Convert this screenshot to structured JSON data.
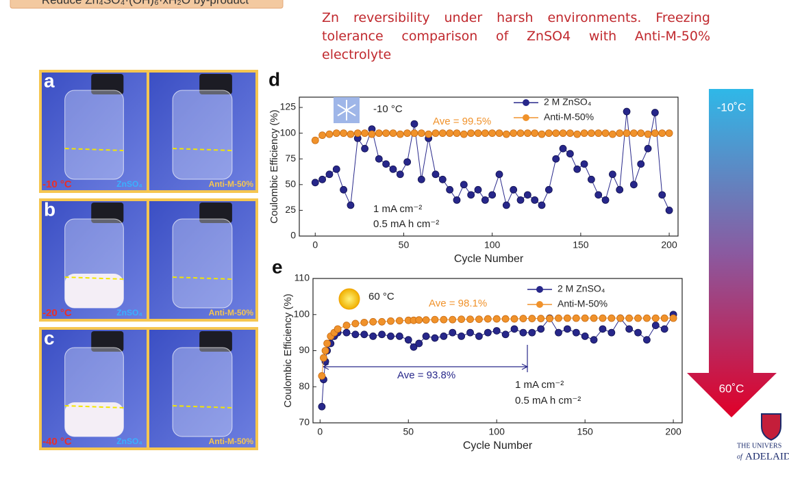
{
  "header": "Reduce Zn₄SO₄·(OH)₆·xH₂O by-product",
  "title": "Zn reversibility under harsh environments. Freezing tolerance comparison of ZnSO4 with Anti-M-50% electrolyte",
  "photos": [
    {
      "letter": "a",
      "temp": "-10 °C",
      "left": "ZnSO₄",
      "right": "Anti-M-50%"
    },
    {
      "letter": "b",
      "temp": "-20 °C",
      "left": "ZnSO₄",
      "right": "Anti-M-50%"
    },
    {
      "letter": "c",
      "temp": "-40 °C",
      "left": "ZnSO₄",
      "right": "Anti-M-50%"
    }
  ],
  "chart_data": [
    {
      "type": "line",
      "panel": "d",
      "x_label": "Cycle Number",
      "y_label": "Coulombic Efficiency (%)",
      "xlim": [
        -9,
        205
      ],
      "ylim": [
        0,
        135
      ],
      "xticks": [
        0,
        50,
        100,
        150,
        200
      ],
      "yticks": [
        0,
        25,
        50,
        75,
        100,
        125
      ],
      "annotations": [
        "-10 °C",
        "Ave = 99.5%",
        "1 mA cm⁻²",
        "0.5 mA h cm⁻²"
      ],
      "x": [
        0,
        4,
        8,
        12,
        16,
        20,
        24,
        28,
        32,
        36,
        40,
        44,
        48,
        52,
        56,
        60,
        64,
        68,
        72,
        76,
        80,
        84,
        88,
        92,
        96,
        100,
        104,
        108,
        112,
        116,
        120,
        124,
        128,
        132,
        136,
        140,
        144,
        148,
        152,
        156,
        160,
        164,
        168,
        172,
        176,
        180,
        184,
        188,
        192,
        196,
        200
      ],
      "series": [
        {
          "name": "2 M ZnSO₄",
          "color": "#27278a",
          "values": [
            52,
            55,
            60,
            65,
            45,
            30,
            95,
            85,
            104,
            75,
            70,
            65,
            60,
            72,
            109,
            55,
            95,
            60,
            55,
            45,
            35,
            50,
            40,
            45,
            35,
            40,
            60,
            30,
            45,
            35,
            40,
            35,
            30,
            45,
            75,
            85,
            80,
            65,
            70,
            55,
            40,
            35,
            60,
            45,
            121,
            50,
            70,
            85,
            120,
            40,
            25
          ]
        },
        {
          "name": "Anti-M-50%",
          "color": "#f0922b",
          "values": [
            93,
            98,
            99,
            100,
            100,
            99,
            100,
            100,
            99,
            100,
            100,
            100,
            99,
            100,
            100,
            100,
            99,
            100,
            100,
            100,
            100,
            99,
            100,
            100,
            100,
            100,
            100,
            99,
            100,
            100,
            100,
            100,
            99,
            100,
            100,
            100,
            100,
            99,
            100,
            100,
            100,
            100,
            99,
            100,
            100,
            100,
            100,
            99,
            100,
            100,
            100
          ]
        }
      ]
    },
    {
      "type": "line",
      "panel": "e",
      "x_label": "Cycle Number",
      "y_label": "Coulombic Efficiency (%)",
      "xlim": [
        -4,
        205
      ],
      "ylim": [
        70,
        110
      ],
      "xticks": [
        0,
        50,
        100,
        150,
        200
      ],
      "yticks": [
        70,
        80,
        90,
        100,
        110
      ],
      "annotations": [
        "60 °C",
        "Ave = 98.1%",
        "Ave = 93.8%",
        "1 mA cm⁻²",
        "0.5 mA h cm⁻²"
      ],
      "x": [
        1,
        2,
        3,
        4,
        6,
        8,
        10,
        15,
        20,
        25,
        30,
        35,
        40,
        45,
        50,
        53,
        56,
        60,
        65,
        70,
        75,
        80,
        85,
        90,
        95,
        100,
        105,
        110,
        115,
        120,
        125,
        130,
        135,
        140,
        145,
        150,
        155,
        160,
        165,
        170,
        175,
        180,
        185,
        190,
        195,
        200
      ],
      "series": [
        {
          "name": "2 M ZnSO₄",
          "color": "#27278a",
          "values": [
            74.5,
            82,
            87,
            90,
            92,
            94,
            95,
            95,
            94.5,
            94.5,
            94,
            94.5,
            94,
            94,
            93,
            91,
            92,
            94,
            93.5,
            94,
            95,
            94,
            95,
            94,
            95,
            95.5,
            94.5,
            96,
            95,
            95,
            96,
            99,
            95,
            96,
            95,
            94,
            93,
            96,
            95,
            99,
            96,
            95,
            93,
            97,
            96,
            100
          ]
        },
        {
          "name": "Anti-M-50%",
          "color": "#f0922b",
          "values": [
            83,
            88,
            90,
            92,
            94,
            95,
            96,
            97,
            97.5,
            97.8,
            98,
            98,
            98.2,
            98.3,
            98.4,
            98.4,
            98.5,
            98.5,
            98.6,
            98.6,
            98.6,
            98.7,
            98.7,
            98.7,
            98.8,
            98.8,
            98.8,
            98.8,
            98.9,
            98.9,
            98.9,
            98.9,
            99,
            99,
            99,
            99,
            99,
            99,
            99,
            99,
            99,
            99,
            99,
            99,
            99,
            99
          ]
        }
      ]
    }
  ],
  "arrow": {
    "top": "-10˚C",
    "bottom": "60˚C"
  },
  "logo": {
    "line1": "THE UNIVERS",
    "of": "of",
    "line2": "ADELAID"
  }
}
